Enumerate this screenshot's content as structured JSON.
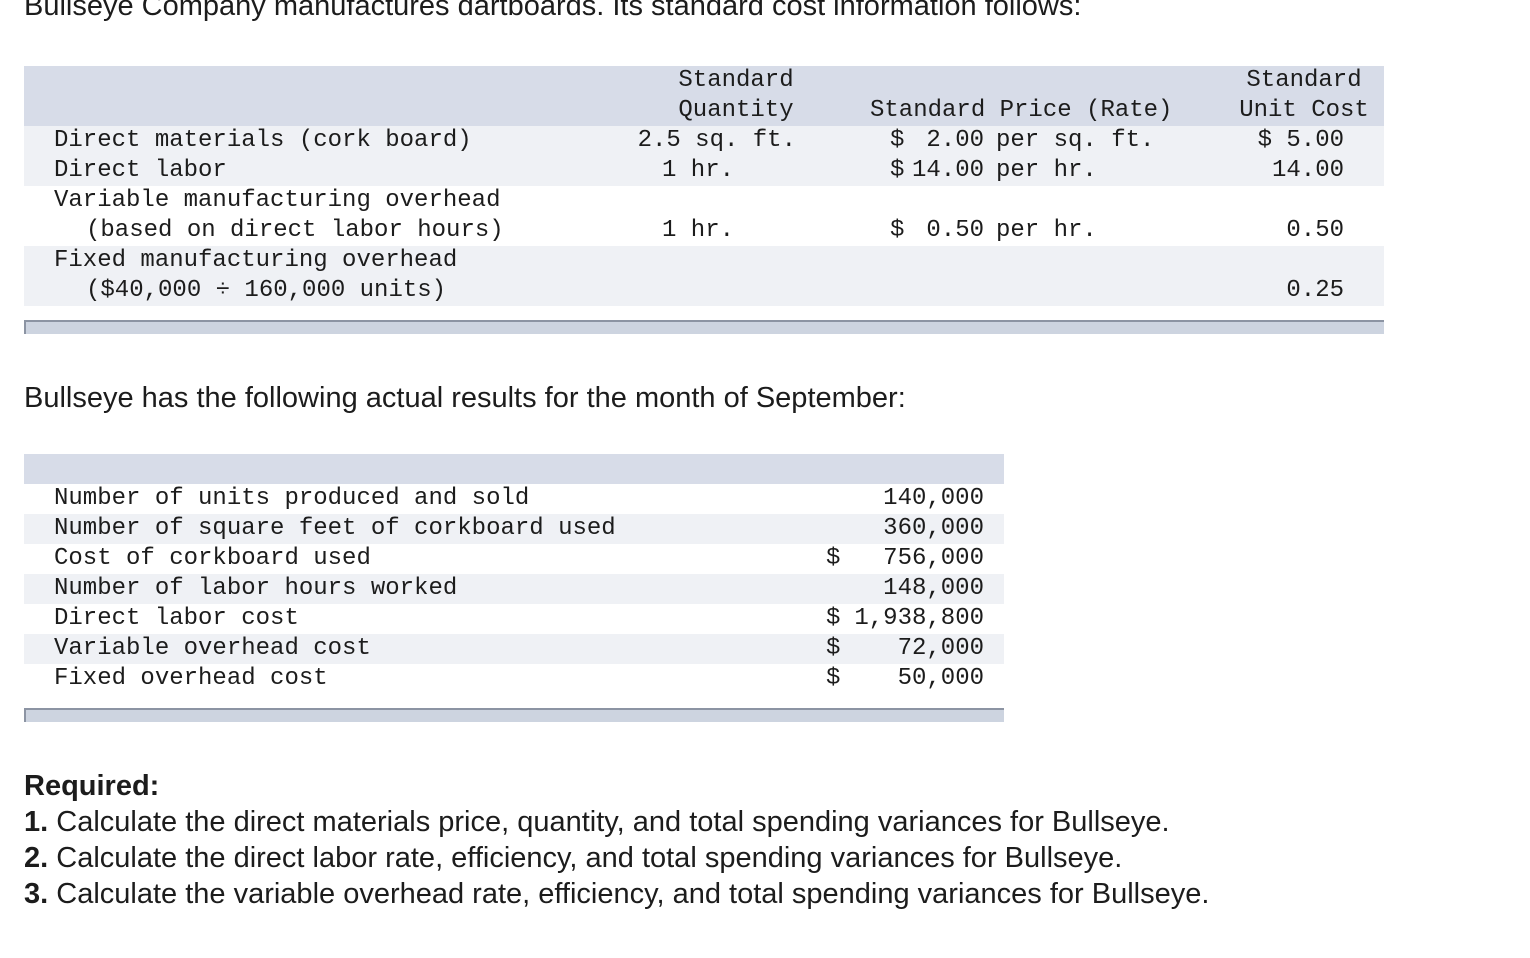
{
  "intro": "Bullseye Company manufactures dartboards. Its standard cost information follows:",
  "standard_table": {
    "headers": {
      "quantity": [
        "Standard",
        "Quantity"
      ],
      "price": "Standard Price (Rate)",
      "unit_cost": [
        "Standard",
        "Unit Cost"
      ]
    },
    "rows": [
      {
        "label": "Direct materials (cork board)",
        "quantity": "2.5 sq. ft.",
        "price_symbol": "$",
        "price_value": "2.00",
        "price_unit": "per sq. ft.",
        "unit_cost": "$ 5.00"
      },
      {
        "label": "Direct labor",
        "quantity": "1 hr.",
        "price_symbol": "$",
        "price_value": "14.00",
        "price_unit": "per hr.",
        "unit_cost": "14.00"
      },
      {
        "label": "Variable manufacturing overhead",
        "label2": "(based on direct labor hours)",
        "quantity": "1 hr.",
        "price_symbol": "$",
        "price_value": "0.50",
        "price_unit": "per hr.",
        "unit_cost": "0.50"
      },
      {
        "label": "Fixed manufacturing overhead",
        "label2": "($40,000 ÷ 160,000 units)",
        "unit_cost": "0.25"
      }
    ]
  },
  "actual_intro": "Bullseye has the following actual results for the month of September:",
  "actual_table": {
    "rows": [
      {
        "label": "Number of units produced and sold",
        "symbol": "",
        "value": "140,000"
      },
      {
        "label": "Number of square feet of corkboard used",
        "symbol": "",
        "value": "360,000"
      },
      {
        "label": "Cost of corkboard used",
        "symbol": "$",
        "value": "756,000"
      },
      {
        "label": "Number of labor hours worked",
        "symbol": "",
        "value": "148,000"
      },
      {
        "label": "Direct labor cost",
        "symbol": "$",
        "value": "1,938,800"
      },
      {
        "label": "Variable overhead cost",
        "symbol": "$",
        "value": "72,000"
      },
      {
        "label": "Fixed overhead cost",
        "symbol": "$",
        "value": "50,000"
      }
    ]
  },
  "required": {
    "title": "Required:",
    "items": [
      {
        "num": "1.",
        "text": "Calculate the direct materials price, quantity, and total spending variances for Bullseye."
      },
      {
        "num": "2.",
        "text": "Calculate the direct labor rate, efficiency, and total spending variances for Bullseye."
      },
      {
        "num": "3.",
        "text": "Calculate the variable overhead rate, efficiency, and total spending variances for Bullseye."
      }
    ]
  }
}
